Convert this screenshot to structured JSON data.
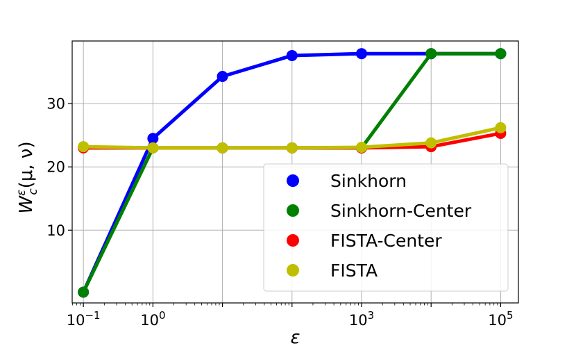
{
  "chart_data": {
    "type": "line",
    "xscale": "log",
    "x": [
      0.1,
      1,
      10,
      100,
      1000,
      10000,
      100000
    ],
    "xticks": [
      {
        "value": 0.1,
        "base": "10",
        "exp": "−1"
      },
      {
        "value": 1,
        "base": "10",
        "exp": "0"
      },
      {
        "value": 1000,
        "base": "10",
        "exp": "3"
      },
      {
        "value": 100000,
        "base": "10",
        "exp": "5"
      }
    ],
    "yticks": [
      {
        "value": 10,
        "label": "10"
      },
      {
        "value": 20,
        "label": "20"
      },
      {
        "value": 30,
        "label": "30"
      }
    ],
    "xlim": [
      0.069,
      180000
    ],
    "ylim": [
      -1.5,
      39.9
    ],
    "xlabel": "ε",
    "ylabel": {
      "main": "W",
      "sub": "c",
      "sup": "ε",
      "args": "(μ, ν)"
    },
    "grid": true,
    "legend_position": "lower-right",
    "series": [
      {
        "name": "Sinkhorn",
        "color": "#0000ff",
        "values": [
          0.2,
          24.5,
          34.3,
          37.6,
          37.9,
          37.9,
          37.9
        ]
      },
      {
        "name": "Sinkhorn-Center",
        "color": "#008000",
        "values": [
          0.2,
          23.0,
          23.0,
          23.0,
          23.0,
          37.9,
          37.9
        ]
      },
      {
        "name": "FISTA-Center",
        "color": "#ff0000",
        "values": [
          23.0,
          23.0,
          23.0,
          23.0,
          23.0,
          23.2,
          25.3
        ]
      },
      {
        "name": "FISTA",
        "color": "#bfbf00",
        "values": [
          23.2,
          23.0,
          23.0,
          23.0,
          23.1,
          23.8,
          26.2
        ]
      }
    ]
  }
}
